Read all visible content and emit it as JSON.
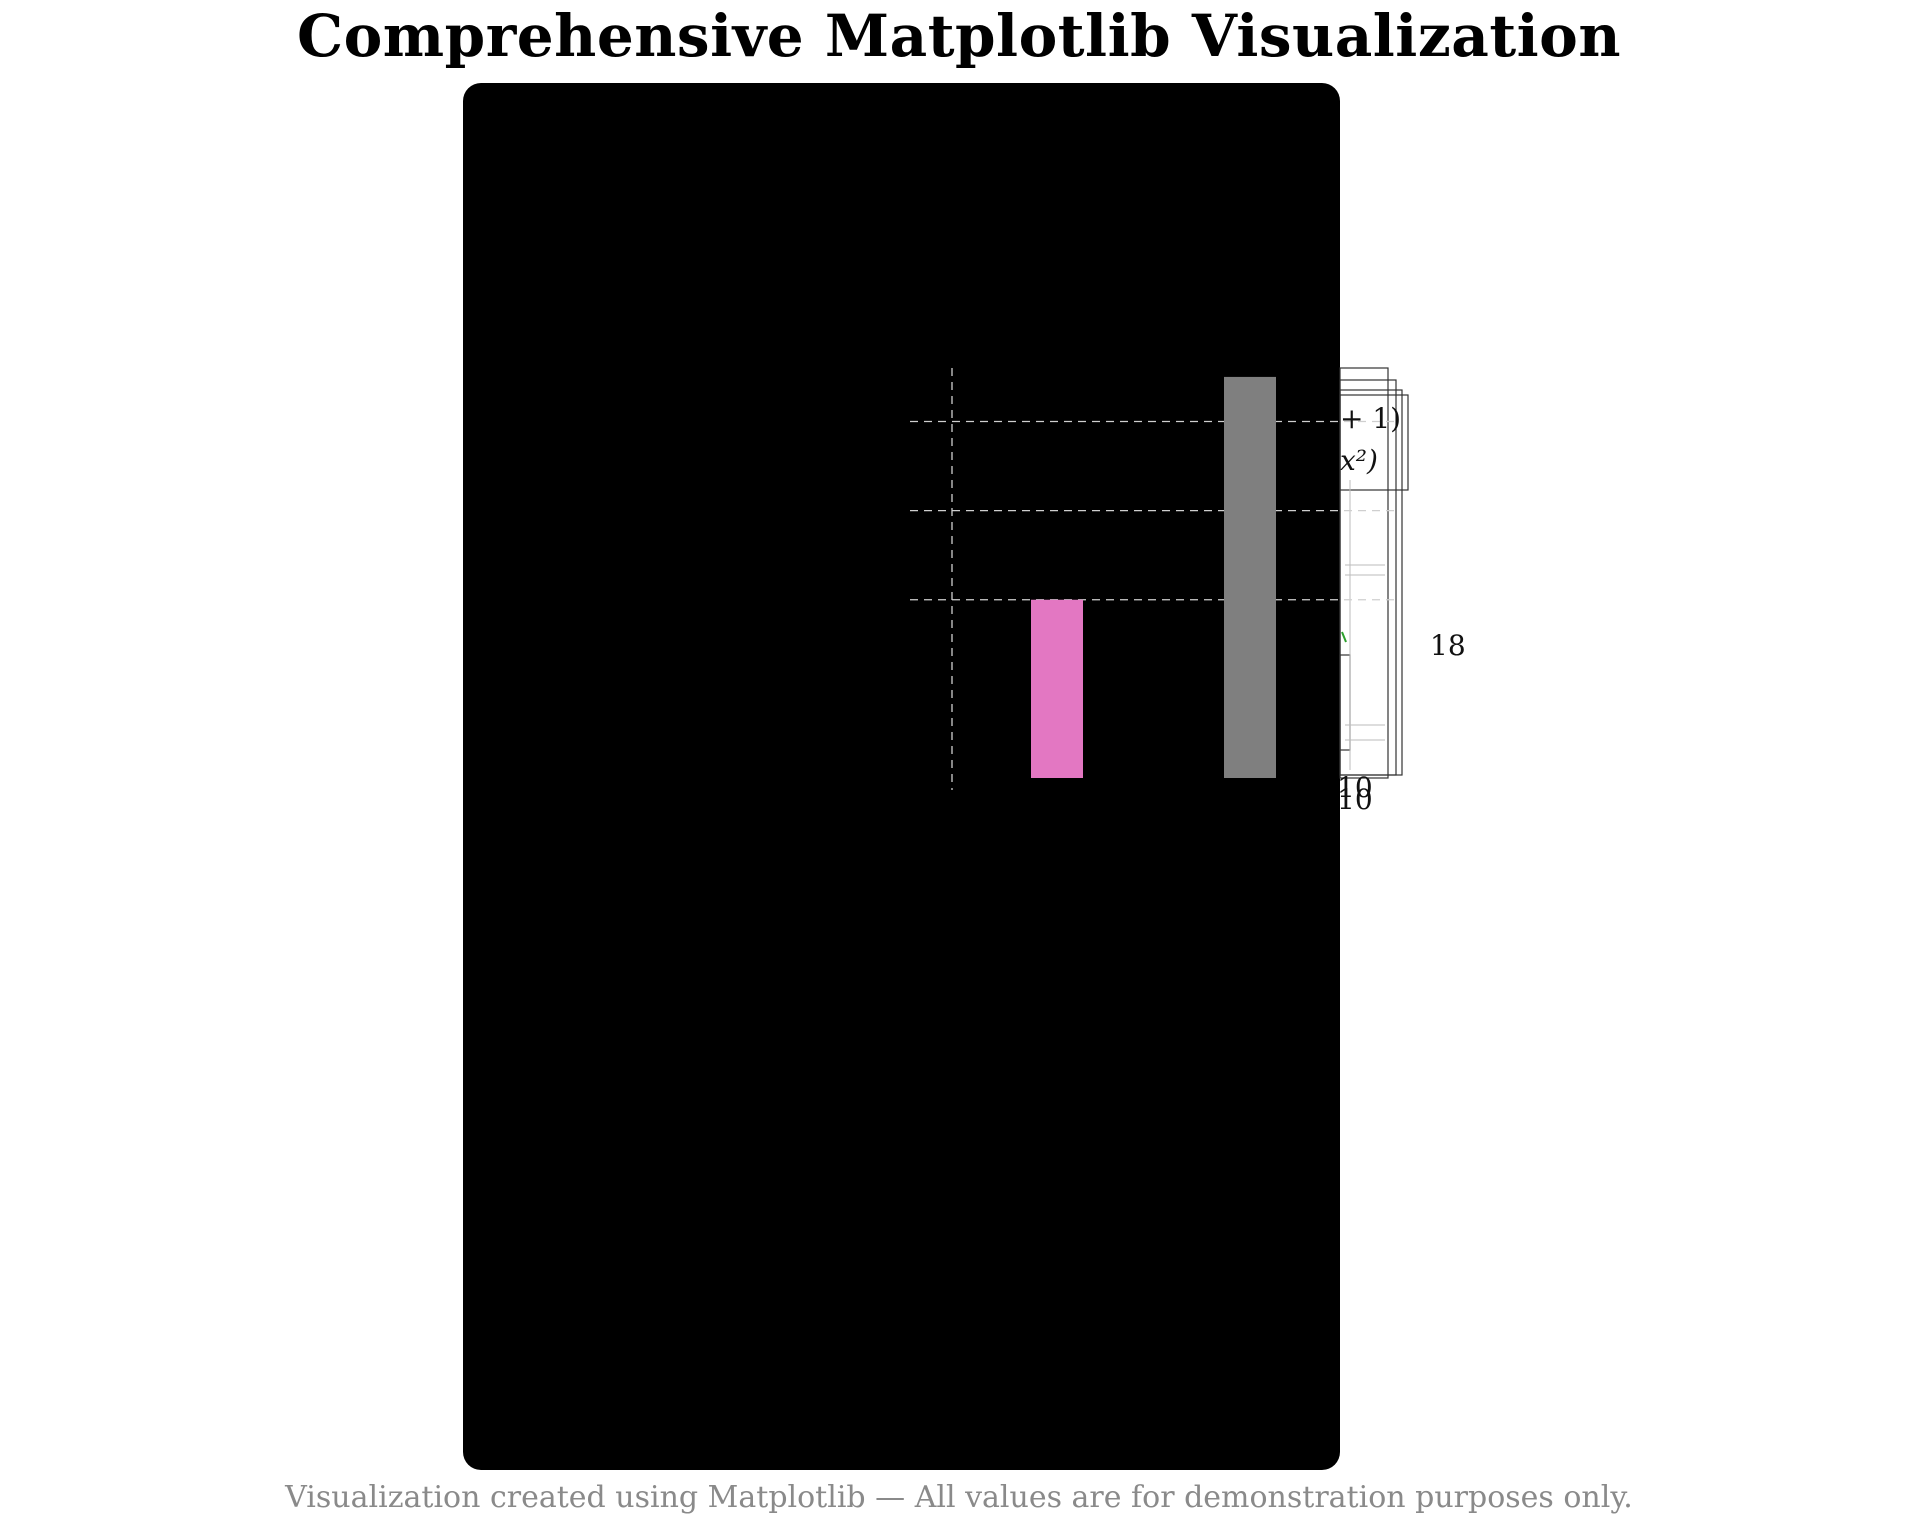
{
  "title": "Comprehensive Matplotlib Visualization",
  "footer": "Visualization created using Matplotlib — All values are for demonstration purposes only.",
  "chart_data": {
    "type": "bar",
    "categories": [
      "",
      ""
    ],
    "series": [
      {
        "name": "",
        "values": [
          18,
          20.5
        ],
        "colors": [
          "#e377c2",
          "#7f7f7f"
        ]
      }
    ],
    "ylim": [
      16,
      20.6
    ],
    "y_gridlines": [
      18,
      19,
      20
    ],
    "grid": "on (dashed)",
    "ytick_labels": [
      "18"
    ],
    "xtick_labels_partial": [
      "10",
      "10"
    ],
    "legend_fragments": [
      "+ 1)",
      "x²)"
    ],
    "panel_color": "#000000"
  }
}
